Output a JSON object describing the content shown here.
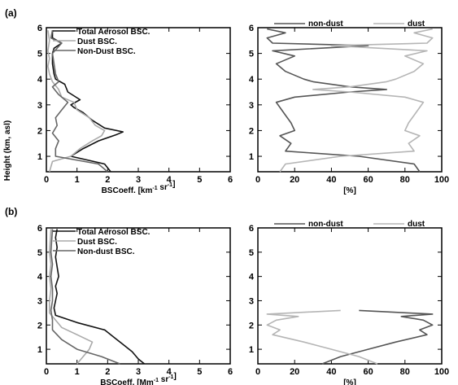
{
  "figure": {
    "ylabel": "Height (km, asl)"
  },
  "chart_data": [
    {
      "type": "line",
      "panel_label": "(a)",
      "xlabel_main": "BSCoeff. [km",
      "xlabel_sup1": "-1",
      "xlabel_mid": " sr",
      "xlabel_sup2": "-1",
      "xlabel_end": "]",
      "xlim": [
        0,
        6
      ],
      "ylim": [
        0.4,
        6
      ],
      "xticks": [
        "0",
        "1",
        "2",
        "3",
        "4",
        "5",
        "6"
      ],
      "yticks": [
        "1",
        "2",
        "3",
        "4",
        "5",
        "6"
      ],
      "legend_position": "top-right",
      "series": [
        {
          "name": "Total Aerosol BSC.",
          "color": "#111111",
          "width": 1.6,
          "x": [
            2.1,
            1.9,
            0.8,
            1.2,
            1.7,
            2.3,
            2.5,
            1.9,
            1.5,
            1.2,
            0.9,
            0.8,
            1.1,
            0.7,
            0.6,
            0.3,
            0.25,
            0.2,
            0.2,
            0.25,
            0.5,
            0.2,
            0.2
          ],
          "y": [
            0.4,
            0.7,
            1.0,
            1.3,
            1.6,
            1.85,
            1.95,
            2.1,
            2.4,
            2.7,
            2.9,
            3.0,
            3.2,
            3.5,
            3.8,
            4.0,
            4.2,
            4.6,
            5.0,
            5.2,
            5.4,
            5.6,
            5.9
          ]
        },
        {
          "name": "Dust BSC.",
          "color": "#aaaaaa",
          "width": 1.6,
          "x": [
            0.1,
            0.2,
            0.8,
            1.1,
            1.5,
            1.8,
            1.9,
            1.6,
            1.4,
            1.0,
            0.9,
            0.5,
            0.4,
            0.2,
            0.1,
            0.05,
            0.1,
            0.05,
            0.1,
            0.05
          ],
          "y": [
            0.4,
            0.8,
            1.0,
            1.3,
            1.6,
            1.8,
            2.0,
            2.2,
            2.5,
            2.8,
            3.1,
            3.3,
            3.6,
            3.9,
            4.2,
            4.5,
            4.8,
            5.1,
            5.5,
            5.9
          ]
        },
        {
          "name": "Non-Dust BSC.",
          "color": "#666666",
          "width": 1.6,
          "x": [
            2.0,
            1.7,
            0.3,
            0.3,
            0.4,
            0.2,
            0.35,
            0.3,
            0.5,
            0.7,
            0.4,
            0.2,
            0.4,
            0.3,
            0.25,
            0.2,
            0.5,
            0.15,
            0.2
          ],
          "y": [
            0.4,
            0.7,
            1.0,
            1.3,
            1.6,
            1.9,
            2.2,
            2.5,
            2.8,
            3.1,
            3.4,
            3.7,
            3.9,
            4.2,
            4.6,
            5.0,
            5.4,
            5.6,
            5.9
          ]
        }
      ]
    },
    {
      "type": "line",
      "xlabel_main": "[%]",
      "xlim": [
        0,
        100
      ],
      "ylim": [
        0.4,
        6
      ],
      "xticks": [
        "0",
        "20",
        "40",
        "60",
        "80",
        "100"
      ],
      "yticks": [
        "1",
        "2",
        "3",
        "4",
        "5",
        "6"
      ],
      "legend_position": "top",
      "series": [
        {
          "name": "non-dust",
          "color": "#555555",
          "width": 1.6,
          "x": [
            88,
            85,
            55,
            15,
            18,
            12,
            20,
            18,
            15,
            12,
            10,
            20,
            50,
            70,
            50,
            30,
            25,
            15,
            10,
            20,
            8,
            60,
            8,
            5,
            10,
            15,
            5
          ],
          "y": [
            0.4,
            0.7,
            1.0,
            1.2,
            1.5,
            1.8,
            2.0,
            2.3,
            2.6,
            2.9,
            3.1,
            3.3,
            3.5,
            3.6,
            3.7,
            3.9,
            4.0,
            4.3,
            4.6,
            4.9,
            5.1,
            5.3,
            5.4,
            5.6,
            5.7,
            5.8,
            5.95
          ]
        },
        {
          "name": "dust",
          "color": "#b5b5b5",
          "width": 1.6,
          "x": [
            12,
            15,
            45,
            85,
            82,
            88,
            80,
            82,
            85,
            88,
            90,
            80,
            50,
            30,
            50,
            70,
            75,
            85,
            90,
            80,
            92,
            40,
            92,
            95,
            90,
            85,
            95
          ],
          "y": [
            0.4,
            0.7,
            1.0,
            1.2,
            1.5,
            1.8,
            2.0,
            2.3,
            2.6,
            2.9,
            3.1,
            3.3,
            3.5,
            3.6,
            3.7,
            3.9,
            4.0,
            4.3,
            4.6,
            4.9,
            5.1,
            5.3,
            5.4,
            5.6,
            5.7,
            5.8,
            5.95
          ]
        }
      ]
    },
    {
      "type": "line",
      "panel_label": "(b)",
      "xlabel_main": "BSCoeff. [Mm",
      "xlabel_sup1": "-1",
      "xlabel_mid": " sr",
      "xlabel_sup2": "-1",
      "xlabel_end": "]",
      "xlim": [
        0,
        6
      ],
      "ylim": [
        0.4,
        6
      ],
      "xticks": [
        "0",
        "1",
        "2",
        "3",
        "4",
        "5",
        "6"
      ],
      "yticks": [
        "1",
        "2",
        "3",
        "4",
        "5",
        "6"
      ],
      "legend_position": "top-right",
      "series": [
        {
          "name": "Total Aerosol BSC.",
          "color": "#111111",
          "width": 1.6,
          "x": [
            3.2,
            3.0,
            2.8,
            2.5,
            2.2,
            1.9,
            1.0,
            0.3,
            0.25,
            0.3,
            0.35,
            0.3,
            0.4,
            0.35,
            0.3,
            0.35,
            0.3,
            0.35
          ],
          "y": [
            0.4,
            0.6,
            0.9,
            1.2,
            1.5,
            1.8,
            2.1,
            2.4,
            2.7,
            3.0,
            3.3,
            3.6,
            4.0,
            4.4,
            4.8,
            5.2,
            5.6,
            5.95
          ]
        },
        {
          "name": "Dust BSC.",
          "color": "#aaaaaa",
          "width": 1.6,
          "x": [
            1.0,
            1.2,
            1.4,
            1.5,
            1.0,
            0.5,
            0.3,
            0.1,
            0.1,
            0.15,
            0.1,
            0.15,
            0.1,
            0.15
          ],
          "y": [
            0.4,
            0.7,
            1.0,
            1.3,
            1.6,
            1.9,
            2.2,
            2.5,
            3.0,
            3.5,
            4.0,
            4.5,
            5.0,
            5.95
          ]
        },
        {
          "name": "Non-dust BSC.",
          "color": "#666666",
          "width": 1.6,
          "x": [
            2.4,
            1.8,
            1.0,
            0.5,
            0.2,
            0.2,
            0.15,
            0.2,
            0.2,
            0.15,
            0.2,
            0.15,
            0.2
          ],
          "y": [
            0.4,
            0.7,
            1.0,
            1.4,
            1.8,
            2.2,
            2.6,
            3.0,
            3.5,
            4.0,
            4.5,
            5.0,
            5.95
          ]
        }
      ]
    },
    {
      "type": "line",
      "xlabel_main": "[%]",
      "xlim": [
        0,
        100
      ],
      "ylim": [
        0.4,
        6
      ],
      "xticks": [
        "0",
        "20",
        "40",
        "60",
        "80",
        "100"
      ],
      "yticks": [
        "1",
        "2",
        "3",
        "4",
        "5",
        "6"
      ],
      "legend_position": "top",
      "series": [
        {
          "name": "non-dust",
          "color": "#555555",
          "width": 1.6,
          "x": [
            35,
            45,
            60,
            75,
            92,
            88,
            95,
            90,
            78,
            95,
            55
          ],
          "y": [
            0.4,
            0.7,
            1.0,
            1.3,
            1.6,
            1.8,
            2.0,
            2.2,
            2.35,
            2.45,
            2.6
          ]
        },
        {
          "name": "dust",
          "color": "#b5b5b5",
          "width": 1.6,
          "x": [
            65,
            55,
            40,
            25,
            8,
            12,
            5,
            10,
            22,
            5,
            45
          ],
          "y": [
            0.4,
            0.7,
            1.0,
            1.3,
            1.6,
            1.8,
            2.0,
            2.2,
            2.35,
            2.45,
            2.6
          ]
        }
      ]
    }
  ]
}
